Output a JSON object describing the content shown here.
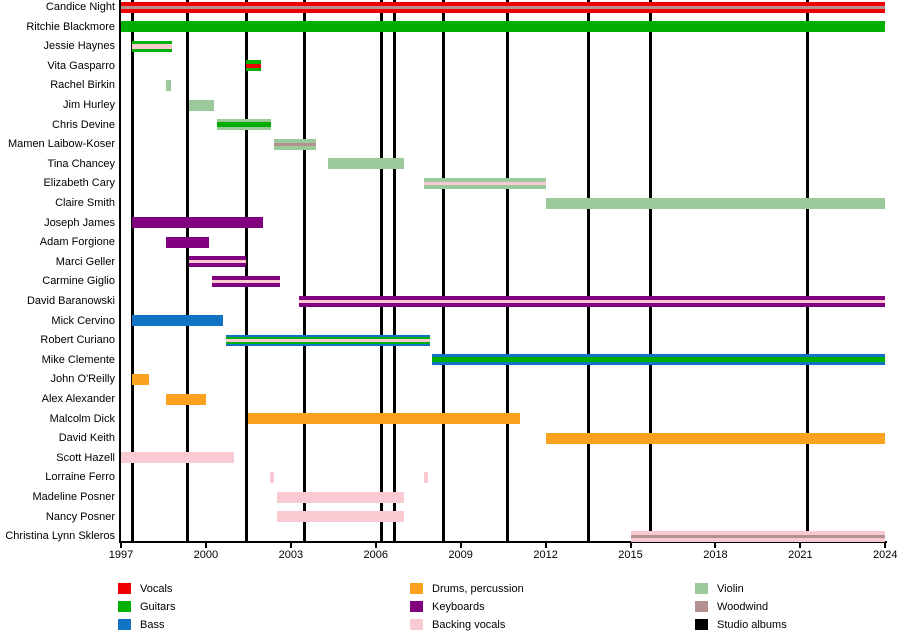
{
  "chart_data": {
    "type": "timeline",
    "description": "Band membership timeline with instrument roles; vertical black lines mark studio albums",
    "x_axis": {
      "start": 1997,
      "end": 2024,
      "ticks": [
        1997,
        2000,
        2003,
        2006,
        2009,
        2012,
        2015,
        2018,
        2021,
        2024
      ]
    },
    "colors": {
      "vocals": "#EE0000",
      "guitars": "#00AF00",
      "bass": "#1272C4",
      "drums": "#FAA21E",
      "keyboards": "#800080",
      "backing_vocals": "#F9CAD2",
      "violin": "#9CC99C",
      "woodwind": "#B59090",
      "albums": "#000000"
    },
    "albums": {
      "label": "Studio albums",
      "years": [
        1997.4,
        1999.35,
        2001.45,
        2003.5,
        2006.2,
        2006.65,
        2008.4,
        2010.65,
        2013.5,
        2015.7,
        2021.25
      ]
    },
    "members": [
      {
        "name": "Candice Night",
        "bars": [
          {
            "start": 1997.0,
            "end": 2024.0,
            "role": "vocals",
            "stripes": [
              {
                "role": "woodwind",
                "h": 3
              }
            ]
          }
        ]
      },
      {
        "name": "Ritchie Blackmore",
        "bars": [
          {
            "start": 1997.0,
            "end": 2024.0,
            "role": "guitars",
            "stripes": []
          }
        ]
      },
      {
        "name": "Jessie Haynes",
        "bars": [
          {
            "start": 1997.4,
            "end": 1998.8,
            "role": "guitars",
            "stripes": [
              {
                "role": "backing_vocals",
                "h": 5
              }
            ]
          }
        ]
      },
      {
        "name": "Vita Gasparro",
        "bars": [
          {
            "start": 2001.4,
            "end": 2001.95,
            "role": "guitars",
            "stripes": [
              {
                "role": "vocals",
                "h": 4
              }
            ]
          }
        ]
      },
      {
        "name": "Rachel Birkin",
        "bars": [
          {
            "start": 1998.6,
            "end": 1998.75,
            "role": "violin",
            "stripes": []
          }
        ]
      },
      {
        "name": "Jim Hurley",
        "bars": [
          {
            "start": 1999.4,
            "end": 2000.3,
            "role": "violin",
            "stripes": []
          }
        ]
      },
      {
        "name": "Chris Devine",
        "bars": [
          {
            "start": 2000.4,
            "end": 2002.3,
            "role": "violin",
            "stripes": [
              {
                "role": "guitars",
                "h": 5
              }
            ]
          }
        ]
      },
      {
        "name": "Mamen Laibow-Koser",
        "bars": [
          {
            "start": 2002.4,
            "end": 2003.9,
            "role": "violin",
            "stripes": [
              {
                "role": "woodwind",
                "h": 3
              }
            ]
          }
        ]
      },
      {
        "name": "Tina Chancey",
        "bars": [
          {
            "start": 2004.3,
            "end": 2007.0,
            "role": "violin",
            "stripes": []
          }
        ]
      },
      {
        "name": "Elizabeth Cary",
        "bars": [
          {
            "start": 2007.7,
            "end": 2012.0,
            "role": "violin",
            "stripes": [
              {
                "role": "backing_vocals",
                "h": 3
              }
            ]
          }
        ]
      },
      {
        "name": "Claire Smith",
        "bars": [
          {
            "start": 2012.0,
            "end": 2024.0,
            "role": "violin",
            "stripes": []
          }
        ]
      },
      {
        "name": "Joseph James",
        "bars": [
          {
            "start": 1997.4,
            "end": 2002.0,
            "role": "keyboards",
            "stripes": []
          }
        ]
      },
      {
        "name": "Adam Forgione",
        "bars": [
          {
            "start": 1998.6,
            "end": 2000.1,
            "role": "keyboards",
            "stripes": []
          }
        ]
      },
      {
        "name": "Marci Geller",
        "bars": [
          {
            "start": 1999.4,
            "end": 2001.4,
            "role": "keyboards",
            "stripes": [
              {
                "role": "backing_vocals",
                "h": 3
              }
            ]
          }
        ]
      },
      {
        "name": "Carmine Giglio",
        "bars": [
          {
            "start": 2000.2,
            "end": 2002.6,
            "role": "keyboards",
            "stripes": [
              {
                "role": "backing_vocals",
                "h": 3
              }
            ]
          }
        ]
      },
      {
        "name": "David Baranowski",
        "bars": [
          {
            "start": 2003.3,
            "end": 2024.0,
            "role": "keyboards",
            "stripes": [
              {
                "role": "backing_vocals",
                "h": 3
              }
            ]
          }
        ]
      },
      {
        "name": "Mick Cervino",
        "bars": [
          {
            "start": 1997.4,
            "end": 2000.6,
            "role": "bass",
            "stripes": []
          }
        ]
      },
      {
        "name": "Robert Curiano",
        "bars": [
          {
            "start": 2000.7,
            "end": 2007.9,
            "role": "bass",
            "stripes": [
              {
                "role": "guitars",
                "h": 7
              },
              {
                "role": "backing_vocals",
                "h": 3
              }
            ]
          }
        ]
      },
      {
        "name": "Mike Clemente",
        "bars": [
          {
            "start": 2008.0,
            "end": 2024.0,
            "role": "bass",
            "stripes": [
              {
                "role": "guitars",
                "h": 5
              }
            ]
          }
        ]
      },
      {
        "name": "John O'Reilly",
        "bars": [
          {
            "start": 1997.4,
            "end": 1998.0,
            "role": "drums",
            "stripes": []
          }
        ]
      },
      {
        "name": "Alex Alexander",
        "bars": [
          {
            "start": 1998.6,
            "end": 2000.0,
            "role": "drums",
            "stripes": []
          }
        ]
      },
      {
        "name": "Malcolm Dick",
        "bars": [
          {
            "start": 2001.5,
            "end": 2011.1,
            "role": "drums",
            "stripes": []
          }
        ]
      },
      {
        "name": "David Keith",
        "bars": [
          {
            "start": 2012.0,
            "end": 2024.0,
            "role": "drums",
            "stripes": []
          }
        ]
      },
      {
        "name": "Scott Hazell",
        "bars": [
          {
            "start": 1997.0,
            "end": 2001.0,
            "role": "backing_vocals",
            "stripes": []
          }
        ]
      },
      {
        "name": "Lorraine Ferro",
        "bars": [
          {
            "start": 2002.25,
            "end": 2002.4,
            "role": "backing_vocals",
            "stripes": []
          },
          {
            "start": 2007.7,
            "end": 2007.85,
            "role": "backing_vocals",
            "stripes": []
          }
        ]
      },
      {
        "name": "Madeline Posner",
        "bars": [
          {
            "start": 2002.5,
            "end": 2007.0,
            "role": "backing_vocals",
            "stripes": []
          }
        ]
      },
      {
        "name": "Nancy Posner",
        "bars": [
          {
            "start": 2002.5,
            "end": 2007.0,
            "role": "backing_vocals",
            "stripes": []
          }
        ]
      },
      {
        "name": "Christina Lynn Skleros",
        "bars": [
          {
            "start": 2015.0,
            "end": 2024.0,
            "role": "backing_vocals",
            "stripes": [
              {
                "role": "woodwind",
                "h": 3
              }
            ]
          }
        ]
      }
    ]
  },
  "legend": {
    "columns": [
      [
        {
          "label": "Vocals",
          "role": "vocals"
        },
        {
          "label": "Guitars",
          "role": "guitars"
        },
        {
          "label": "Bass",
          "role": "bass"
        }
      ],
      [
        {
          "label": "Drums, percussion",
          "role": "drums"
        },
        {
          "label": "Keyboards",
          "role": "keyboards"
        },
        {
          "label": "Backing vocals",
          "role": "backing_vocals"
        }
      ],
      [
        {
          "label": "Violin",
          "role": "violin"
        },
        {
          "label": "Woodwind",
          "role": "woodwind"
        },
        {
          "label": "Studio albums",
          "role": "albums"
        }
      ]
    ]
  }
}
